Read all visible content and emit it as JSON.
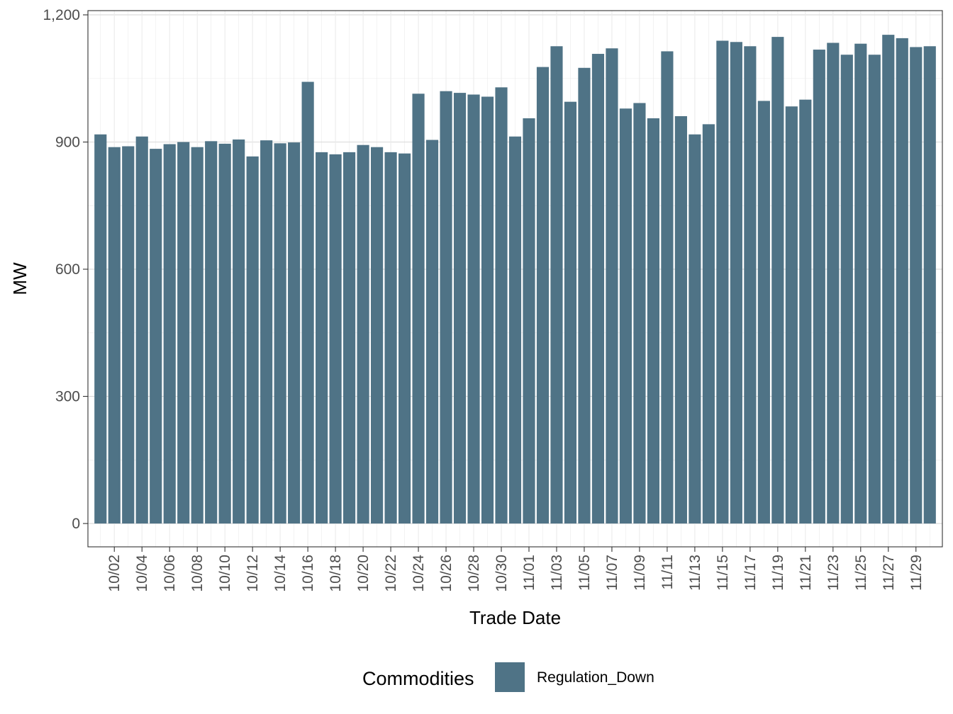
{
  "chart_data": {
    "type": "bar",
    "title": "",
    "xlabel": "Trade Date",
    "ylabel": "MW",
    "ylim": [
      -55,
      1210
    ],
    "yticks": [
      0,
      300,
      600,
      900,
      1200
    ],
    "ytick_labels": [
      "0",
      "300",
      "600",
      "900",
      "1,200"
    ],
    "grid": true,
    "legend_position": "bottom",
    "legend_title": "Commodities",
    "bar_color": "#4f7386",
    "categories": [
      "10/01",
      "10/02",
      "10/03",
      "10/04",
      "10/05",
      "10/06",
      "10/07",
      "10/08",
      "10/09",
      "10/10",
      "10/11",
      "10/12",
      "10/13",
      "10/14",
      "10/15",
      "10/16",
      "10/17",
      "10/18",
      "10/19",
      "10/20",
      "10/21",
      "10/22",
      "10/23",
      "10/24",
      "10/25",
      "10/26",
      "10/27",
      "10/28",
      "10/29",
      "10/30",
      "10/31",
      "11/01",
      "11/02",
      "11/03",
      "11/04",
      "11/05",
      "11/06",
      "11/07",
      "11/08",
      "11/09",
      "11/10",
      "11/11",
      "11/12",
      "11/13",
      "11/14",
      "11/15",
      "11/16",
      "11/17",
      "11/18",
      "11/19",
      "11/20",
      "11/21",
      "11/22",
      "11/23",
      "11/24",
      "11/25",
      "11/26",
      "11/27",
      "11/28",
      "11/29",
      "11/30"
    ],
    "tick_labels": [
      "10/02",
      "10/04",
      "10/06",
      "10/08",
      "10/10",
      "10/12",
      "10/14",
      "10/16",
      "10/18",
      "10/20",
      "10/22",
      "10/24",
      "10/26",
      "10/28",
      "10/30",
      "11/01",
      "11/03",
      "11/05",
      "11/07",
      "11/09",
      "11/11",
      "11/13",
      "11/15",
      "11/17",
      "11/19",
      "11/21",
      "11/23",
      "11/25",
      "11/27",
      "11/29"
    ],
    "series": [
      {
        "name": "Regulation_Down",
        "values": [
          918,
          888,
          890,
          913,
          884,
          895,
          900,
          888,
          902,
          896,
          906,
          866,
          904,
          897,
          899,
          1042,
          876,
          871,
          876,
          893,
          888,
          876,
          873,
          1014,
          905,
          1020,
          1016,
          1012,
          1007,
          1029,
          913,
          956,
          1077,
          1126,
          995,
          1075,
          1108,
          1121,
          979,
          992,
          956,
          1114,
          961,
          918,
          942,
          1139,
          1136,
          1126,
          997,
          1148,
          984,
          1000,
          1118,
          1134,
          1106,
          1132,
          1106,
          1153,
          1145,
          1124,
          1126
        ]
      }
    ]
  }
}
